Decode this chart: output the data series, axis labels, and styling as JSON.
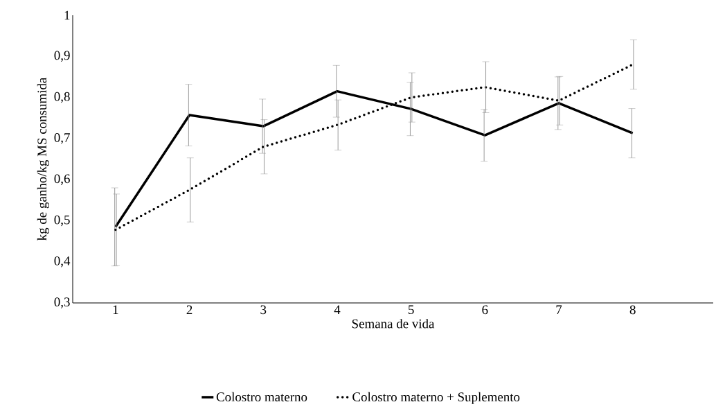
{
  "chart_data": {
    "type": "line",
    "xlabel": "Semana de vida",
    "ylabel": "kg de ganho/kg MS consumida",
    "categories": [
      "1",
      "2",
      "3",
      "4",
      "5",
      "6",
      "7",
      "8"
    ],
    "series": [
      {
        "name": "Colostro materno",
        "color": "#000000",
        "line_style": "solid",
        "values": [
          0.485,
          0.757,
          0.73,
          0.815,
          0.772,
          0.708,
          0.786,
          0.713
        ],
        "errors": [
          0.095,
          0.075,
          0.066,
          0.063,
          0.065,
          0.063,
          0.064,
          0.06
        ]
      },
      {
        "name": "Colostro materno + Suplemento",
        "color": "#000000",
        "line_style": "dotted",
        "values": [
          0.478,
          0.575,
          0.68,
          0.733,
          0.8,
          0.825,
          0.792,
          0.88
        ],
        "errors": [
          0.087,
          0.078,
          0.066,
          0.061,
          0.06,
          0.062,
          0.059,
          0.06
        ]
      }
    ],
    "ylim": [
      0.3,
      1
    ],
    "yticks": [
      {
        "value": 0.3,
        "label": "0,3"
      },
      {
        "value": 0.4,
        "label": "0,4"
      },
      {
        "value": 0.5,
        "label": "0,5"
      },
      {
        "value": 0.6,
        "label": "0,6"
      },
      {
        "value": 0.7,
        "label": "0,7"
      },
      {
        "value": 0.8,
        "label": "0,8"
      },
      {
        "value": 0.9,
        "label": "0,9"
      },
      1
    ],
    "grid": false,
    "legend": "bottom"
  }
}
